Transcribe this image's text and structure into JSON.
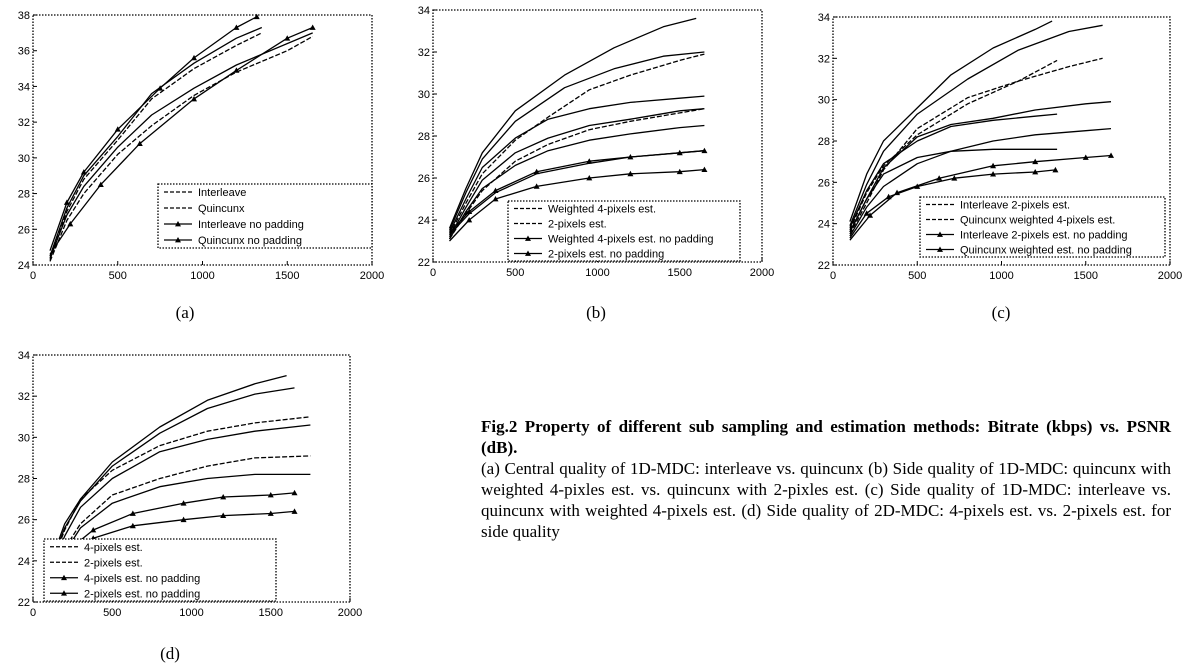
{
  "chart_data": [
    {
      "id": "a",
      "type": "line",
      "label": "(a)",
      "xlim": [
        0,
        2000
      ],
      "ylim": [
        24,
        38
      ],
      "xticks": [
        0,
        500,
        1000,
        1500,
        2000
      ],
      "yticks": [
        24,
        26,
        28,
        30,
        32,
        34,
        36,
        38
      ],
      "legend_position": "bottom-right",
      "grid": false,
      "series": [
        {
          "name": "Interleave",
          "style": "dashed",
          "marker": null,
          "x": [
            100,
            200,
            300,
            500,
            700,
            950,
            1200,
            1350
          ],
          "y": [
            24.3,
            27.0,
            28.8,
            31.0,
            33.3,
            35.0,
            36.3,
            37.0
          ]
        },
        {
          "name": "Quincunx",
          "style": "dashed",
          "marker": null,
          "x": [
            100,
            200,
            300,
            500,
            700,
            950,
            1200,
            1500,
            1650
          ],
          "y": [
            24.2,
            26.5,
            28.0,
            30.2,
            31.8,
            33.5,
            34.8,
            36.0,
            36.8
          ]
        },
        {
          "name": "Interleave no padding",
          "style": "solid",
          "marker": "triangle",
          "x": [
            100,
            200,
            300,
            500,
            750,
            950,
            1200,
            1320
          ],
          "y": [
            24.8,
            27.5,
            29.2,
            31.6,
            33.9,
            35.6,
            37.3,
            37.9
          ]
        },
        {
          "name": "Quincunx no padding",
          "style": "solid",
          "marker": "triangle",
          "x": [
            100,
            220,
            400,
            630,
            950,
            1200,
            1500,
            1650
          ],
          "y": [
            24.6,
            26.3,
            28.5,
            30.8,
            33.3,
            34.9,
            36.7,
            37.3
          ]
        },
        {
          "name": "",
          "style": "solid",
          "marker": null,
          "x": [
            100,
            200,
            300,
            500,
            700,
            950,
            1200,
            1350
          ],
          "y": [
            24.5,
            27.2,
            29.0,
            31.2,
            33.6,
            35.3,
            36.7,
            37.3
          ]
        },
        {
          "name": "",
          "style": "solid",
          "marker": null,
          "x": [
            100,
            200,
            300,
            500,
            700,
            950,
            1200,
            1650
          ],
          "y": [
            24.4,
            26.8,
            28.4,
            30.6,
            32.4,
            33.9,
            35.2,
            37.0
          ]
        }
      ]
    },
    {
      "id": "b",
      "type": "line",
      "label": "(b)",
      "xlim": [
        0,
        2000
      ],
      "ylim": [
        22,
        34
      ],
      "xticks": [
        0,
        500,
        1000,
        1500,
        2000
      ],
      "yticks": [
        22,
        24,
        26,
        28,
        30,
        32,
        34
      ],
      "legend_position": "bottom-right",
      "grid": false,
      "series": [
        {
          "name": "Weighted 4-pixels est.",
          "style": "dashed",
          "marker": null,
          "x": [
            100,
            200,
            300,
            500,
            700,
            950,
            1200,
            1500,
            1650
          ],
          "y": [
            23.3,
            24.8,
            26.2,
            27.8,
            28.9,
            30.2,
            30.9,
            31.6,
            31.9
          ]
        },
        {
          "name": "2-pixels est.",
          "style": "dashed",
          "marker": null,
          "x": [
            100,
            200,
            300,
            500,
            700,
            950,
            1200,
            1500,
            1650
          ],
          "y": [
            23.1,
            24.3,
            25.4,
            26.8,
            27.6,
            28.3,
            28.7,
            29.1,
            29.3
          ]
        },
        {
          "name": "Weighted 4-pixels est. no padding",
          "style": "solid",
          "marker": "triangle",
          "x": [
            100,
            220,
            380,
            630,
            950,
            1200,
            1500,
            1650
          ],
          "y": [
            23.4,
            24.4,
            25.4,
            26.3,
            26.8,
            27.0,
            27.2,
            27.3
          ]
        },
        {
          "name": "2-pixels est. no padding",
          "style": "solid",
          "marker": "triangle",
          "x": [
            100,
            220,
            380,
            630,
            950,
            1200,
            1500,
            1650
          ],
          "y": [
            23.0,
            24.0,
            25.0,
            25.6,
            26.0,
            26.2,
            26.3,
            26.4
          ]
        },
        {
          "name": "",
          "style": "solid",
          "marker": null,
          "x": [
            100,
            200,
            300,
            500,
            800,
            1100,
            1400,
            1600
          ],
          "y": [
            23.6,
            25.5,
            27.2,
            29.2,
            30.9,
            32.2,
            33.2,
            33.6
          ]
        },
        {
          "name": "",
          "style": "solid",
          "marker": null,
          "x": [
            100,
            200,
            300,
            500,
            800,
            1100,
            1400,
            1650
          ],
          "y": [
            23.5,
            25.3,
            26.9,
            28.7,
            30.3,
            31.2,
            31.8,
            32.0
          ]
        },
        {
          "name": "",
          "style": "solid",
          "marker": null,
          "x": [
            100,
            200,
            300,
            500,
            700,
            950,
            1200,
            1500,
            1650
          ],
          "y": [
            23.4,
            25.0,
            26.5,
            27.9,
            28.8,
            29.3,
            29.6,
            29.8,
            29.9
          ]
        },
        {
          "name": "",
          "style": "solid",
          "marker": null,
          "x": [
            100,
            200,
            300,
            500,
            700,
            950,
            1200,
            1500,
            1650
          ],
          "y": [
            23.2,
            24.6,
            25.9,
            27.2,
            27.9,
            28.5,
            28.8,
            29.2,
            29.3
          ]
        },
        {
          "name": "",
          "style": "solid",
          "marker": null,
          "x": [
            100,
            200,
            300,
            500,
            700,
            950,
            1200,
            1500,
            1650
          ],
          "y": [
            23.1,
            24.4,
            25.5,
            26.6,
            27.3,
            27.8,
            28.1,
            28.4,
            28.5
          ]
        },
        {
          "name": "",
          "style": "solid",
          "marker": null,
          "x": [
            100,
            220,
            380,
            630,
            950,
            1200,
            1500,
            1650
          ],
          "y": [
            23.3,
            24.3,
            25.3,
            26.2,
            26.7,
            27.0,
            27.2,
            27.3
          ]
        }
      ]
    },
    {
      "id": "c",
      "type": "line",
      "label": "(c)",
      "xlim": [
        0,
        2000
      ],
      "ylim": [
        22,
        34
      ],
      "xticks": [
        0,
        500,
        1000,
        1500,
        2000
      ],
      "yticks": [
        22,
        24,
        26,
        28,
        30,
        32,
        34
      ],
      "legend_position": "bottom-right",
      "grid": false,
      "series": [
        {
          "name": "Interleave 2-pixels est.",
          "style": "dashed",
          "marker": null,
          "x": [
            100,
            200,
            300,
            500,
            800,
            1100,
            1330
          ],
          "y": [
            23.7,
            25.5,
            26.8,
            28.3,
            29.8,
            30.9,
            31.9
          ]
        },
        {
          "name": "Quincunx weighted 4-pixels est.",
          "style": "dashed",
          "marker": null,
          "x": [
            100,
            200,
            300,
            500,
            800,
            1100,
            1400,
            1600
          ],
          "y": [
            23.5,
            25.0,
            26.6,
            28.6,
            30.1,
            30.9,
            31.6,
            32.0
          ]
        },
        {
          "name": "Interleave 2-pixels est. no padding",
          "style": "solid",
          "marker": "triangle",
          "x": [
            100,
            200,
            330,
            500,
            720,
            950,
            1200,
            1320
          ],
          "y": [
            23.3,
            24.5,
            25.3,
            25.8,
            26.2,
            26.4,
            26.5,
            26.6
          ]
        },
        {
          "name": "Quincunx weighted est. no padding",
          "style": "solid",
          "marker": "triangle",
          "x": [
            100,
            220,
            380,
            630,
            950,
            1200,
            1500,
            1650
          ],
          "y": [
            23.2,
            24.4,
            25.5,
            26.2,
            26.8,
            27.0,
            27.2,
            27.3
          ]
        },
        {
          "name": "",
          "style": "solid",
          "marker": null,
          "x": [
            100,
            200,
            300,
            500,
            700,
            950,
            1200,
            1300
          ],
          "y": [
            24.1,
            26.4,
            28.0,
            29.6,
            31.2,
            32.5,
            33.4,
            33.8
          ]
        },
        {
          "name": "",
          "style": "solid",
          "marker": null,
          "x": [
            100,
            200,
            300,
            500,
            800,
            1100,
            1400,
            1600
          ],
          "y": [
            23.9,
            25.9,
            27.5,
            29.3,
            31.0,
            32.4,
            33.3,
            33.6
          ]
        },
        {
          "name": "",
          "style": "solid",
          "marker": null,
          "x": [
            100,
            200,
            300,
            500,
            700,
            950,
            1200,
            1330
          ],
          "y": [
            23.8,
            25.6,
            26.9,
            28.0,
            28.7,
            29.0,
            29.2,
            29.3
          ]
        },
        {
          "name": "",
          "style": "solid",
          "marker": null,
          "x": [
            100,
            200,
            300,
            500,
            700,
            950,
            1200,
            1500,
            1650
          ],
          "y": [
            23.6,
            25.2,
            26.7,
            28.2,
            28.8,
            29.1,
            29.5,
            29.8,
            29.9
          ]
        },
        {
          "name": "",
          "style": "solid",
          "marker": null,
          "x": [
            100,
            200,
            300,
            500,
            700,
            950,
            1200,
            1330
          ],
          "y": [
            23.6,
            25.2,
            26.4,
            27.2,
            27.5,
            27.6,
            27.6,
            27.6
          ]
        },
        {
          "name": "",
          "style": "solid",
          "marker": null,
          "x": [
            100,
            200,
            300,
            500,
            700,
            950,
            1200,
            1500,
            1650
          ],
          "y": [
            23.4,
            24.8,
            25.8,
            26.9,
            27.5,
            28.0,
            28.3,
            28.5,
            28.6
          ]
        }
      ]
    },
    {
      "id": "d",
      "type": "line",
      "label": "(d)",
      "xlim": [
        0,
        2000
      ],
      "ylim": [
        22,
        34
      ],
      "xticks": [
        0,
        500,
        1000,
        1500,
        2000
      ],
      "yticks": [
        22,
        24,
        26,
        28,
        30,
        32,
        34
      ],
      "legend_position": "bottom-left",
      "grid": false,
      "series": [
        {
          "name": "4-pixels est.",
          "style": "dashed",
          "marker": null,
          "x": [
            100,
            200,
            300,
            500,
            800,
            1100,
            1400,
            1750
          ],
          "y": [
            23.5,
            25.5,
            27.0,
            28.4,
            29.6,
            30.3,
            30.7,
            31.0
          ]
        },
        {
          "name": "2-pixels est.",
          "style": "dashed",
          "marker": null,
          "x": [
            100,
            200,
            300,
            500,
            800,
            1100,
            1400,
            1750
          ],
          "y": [
            23.2,
            24.6,
            25.8,
            27.2,
            28.0,
            28.6,
            29.0,
            29.1
          ]
        },
        {
          "name": "4-pixels est. no padding",
          "style": "solid",
          "marker": "triangle",
          "x": [
            100,
            220,
            380,
            630,
            950,
            1200,
            1500,
            1650
          ],
          "y": [
            23.2,
            24.5,
            25.5,
            26.3,
            26.8,
            27.1,
            27.2,
            27.3
          ]
        },
        {
          "name": "2-pixels est. no padding",
          "style": "solid",
          "marker": "triangle",
          "x": [
            100,
            220,
            380,
            630,
            950,
            1200,
            1500,
            1650
          ],
          "y": [
            23.0,
            24.1,
            25.1,
            25.7,
            26.0,
            26.2,
            26.3,
            26.4
          ]
        },
        {
          "name": "",
          "style": "solid",
          "marker": null,
          "x": [
            100,
            200,
            300,
            500,
            800,
            1100,
            1400,
            1600
          ],
          "y": [
            23.7,
            25.8,
            27.0,
            28.8,
            30.5,
            31.8,
            32.6,
            33.0
          ]
        },
        {
          "name": "",
          "style": "solid",
          "marker": null,
          "x": [
            100,
            200,
            300,
            500,
            800,
            1100,
            1400,
            1650
          ],
          "y": [
            23.6,
            25.6,
            26.9,
            28.6,
            30.2,
            31.4,
            32.1,
            32.4
          ]
        },
        {
          "name": "",
          "style": "solid",
          "marker": null,
          "x": [
            100,
            200,
            300,
            500,
            800,
            1100,
            1400,
            1750
          ],
          "y": [
            23.4,
            25.2,
            26.6,
            28.0,
            29.3,
            29.9,
            30.3,
            30.6
          ]
        },
        {
          "name": "",
          "style": "solid",
          "marker": null,
          "x": [
            100,
            200,
            300,
            500,
            800,
            1100,
            1400,
            1750
          ],
          "y": [
            23.1,
            24.4,
            25.6,
            26.8,
            27.6,
            28.0,
            28.2,
            28.2
          ]
        }
      ]
    }
  ],
  "caption": {
    "title": "Fig.2 Property of different sub sampling and estimation methods: Bitrate (kbps) vs. PSNR (dB).",
    "body": "(a) Central quality of 1D-MDC: interleave vs. quincunx (b) Side quality of 1D-MDC: quincunx with weighted 4-pixles est. vs. quincunx with 2-pixles est. (c) Side quality of 1D-MDC: interleave vs. quincunx with weighted 4-pixels est. (d) Side quality of 2D-MDC: 4-pixels est. vs. 2-pixels est. for side quality"
  }
}
